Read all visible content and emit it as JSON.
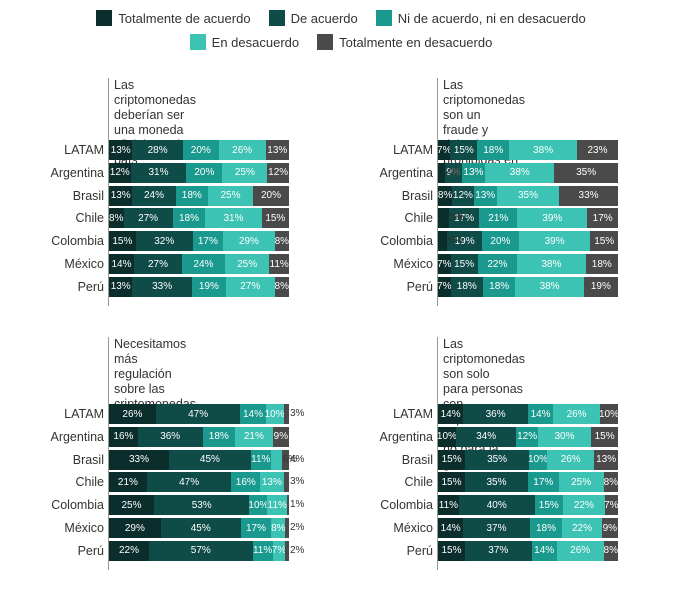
{
  "legend": {
    "items": [
      {
        "label": "Totalmente de acuerdo",
        "color": "#0b2d2c"
      },
      {
        "label": "De acuerdo",
        "color": "#0f4b47"
      },
      {
        "label": "Ni de acuerdo, ni en desacuerdo",
        "color": "#1a9a8e"
      },
      {
        "label": "En desacuerdo",
        "color": "#3cc3b3"
      },
      {
        "label": "Totalmente en desacuerdo",
        "color": "#4a4a4a"
      }
    ]
  },
  "chart_data": [
    {
      "type": "bar",
      "stacked": "100%",
      "orientation": "horizontal",
      "title": "Las criptomonedas\ndeberían ser una moneda\noficial en mi país",
      "categories": [
        "LATAM",
        "Argentina",
        "Brasil",
        "Chile",
        "Colombia",
        "México",
        "Perú"
      ],
      "series": [
        {
          "name": "Totalmente de acuerdo",
          "values": [
            13,
            12,
            13,
            8,
            15,
            14,
            13
          ]
        },
        {
          "name": "De acuerdo",
          "values": [
            28,
            31,
            24,
            27,
            32,
            27,
            33
          ]
        },
        {
          "name": "Ni de acuerdo, ni en desacuerdo",
          "values": [
            20,
            20,
            18,
            18,
            17,
            24,
            19
          ]
        },
        {
          "name": "En desacuerdo",
          "values": [
            26,
            25,
            25,
            31,
            29,
            25,
            27
          ]
        },
        {
          "name": "Totalmente en desacuerdo",
          "values": [
            13,
            12,
            20,
            15,
            8,
            11,
            8
          ]
        }
      ]
    },
    {
      "type": "bar",
      "stacked": "100%",
      "orientation": "horizontal",
      "title": "Las criptomonedas son un\nfraude y deberían ser\nprohibidas en mi país",
      "categories": [
        "LATAM",
        "Argentina",
        "Brasil",
        "Chile",
        "Colombia",
        "México",
        "Perú"
      ],
      "series": [
        {
          "name": "Totalmente de acuerdo",
          "values": [
            7,
            4,
            8,
            6,
            5,
            7,
            7
          ]
        },
        {
          "name": "De acuerdo",
          "values": [
            15,
            9,
            12,
            17,
            19,
            15,
            18
          ]
        },
        {
          "name": "Ni de acuerdo, ni en desacuerdo",
          "values": [
            18,
            13,
            13,
            21,
            20,
            22,
            18
          ]
        },
        {
          "name": "En desacuerdo",
          "values": [
            38,
            38,
            35,
            39,
            39,
            38,
            38
          ]
        },
        {
          "name": "Totalmente en desacuerdo",
          "values": [
            23,
            35,
            33,
            17,
            15,
            18,
            19
          ]
        }
      ]
    },
    {
      "type": "bar",
      "stacked": "100%",
      "orientation": "horizontal",
      "title": "Necesitamos más regulación\nsobre las criptomonedas en\nmi país",
      "categories": [
        "LATAM",
        "Argentina",
        "Brasil",
        "Chile",
        "Colombia",
        "México",
        "Perú"
      ],
      "series": [
        {
          "name": "Totalmente de acuerdo",
          "values": [
            26,
            16,
            33,
            21,
            25,
            29,
            22
          ]
        },
        {
          "name": "De acuerdo",
          "values": [
            47,
            36,
            45,
            47,
            53,
            45,
            57
          ]
        },
        {
          "name": "Ni de acuerdo, ni en desacuerdo",
          "values": [
            14,
            18,
            11,
            16,
            10,
            17,
            11
          ]
        },
        {
          "name": "En desacuerdo",
          "values": [
            10,
            21,
            6,
            13,
            11,
            8,
            7
          ]
        },
        {
          "name": "Totalmente en desacuerdo",
          "values": [
            3,
            9,
            4,
            3,
            1,
            2,
            2
          ]
        }
      ]
    },
    {
      "type": "bar",
      "stacked": "100%",
      "orientation": "horizontal",
      "title": "Las criptomonedas son solo\npara personas con experiencia\ntecnológica, no para la gente\ncomún",
      "categories": [
        "LATAM",
        "Argentina",
        "Brasil",
        "Chile",
        "Colombia",
        "México",
        "Perú"
      ],
      "series": [
        {
          "name": "Totalmente de acuerdo",
          "values": [
            14,
            10,
            15,
            15,
            11,
            14,
            15
          ]
        },
        {
          "name": "De acuerdo",
          "values": [
            36,
            34,
            35,
            35,
            40,
            37,
            37
          ]
        },
        {
          "name": "Ni de acuerdo, ni en desacuerdo",
          "values": [
            14,
            12,
            10,
            17,
            15,
            18,
            14
          ]
        },
        {
          "name": "En desacuerdo",
          "values": [
            26,
            30,
            26,
            25,
            22,
            22,
            26
          ]
        },
        {
          "name": "Totalmente en desacuerdo",
          "values": [
            10,
            15,
            13,
            8,
            7,
            9,
            8
          ]
        }
      ]
    }
  ]
}
